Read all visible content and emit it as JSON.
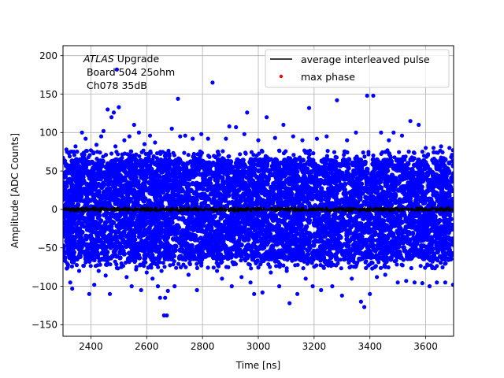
{
  "chart_data": {
    "type": "scatter",
    "title": "",
    "xlabel": "Time [ns]",
    "ylabel": "Amplitude [ADC Counts]",
    "xlim": [
      2300,
      3700
    ],
    "ylim": [
      -165,
      213
    ],
    "xticks": [
      2400,
      2600,
      2800,
      3000,
      3200,
      3400,
      3600
    ],
    "yticks": [
      -150,
      -100,
      -50,
      0,
      50,
      100,
      150,
      200
    ],
    "grid": true,
    "legend_position": "top-right",
    "annotation": {
      "italic": "ATLAS",
      "line1_rest": " Upgrade",
      "line2": " Board 504 25ohm",
      "line3": " Ch078 35dB"
    },
    "series": [
      {
        "name": "average interleaved pulse",
        "style": "line",
        "color": "#000000",
        "x_range": [
          2300,
          3700
        ],
        "y_mean": 0,
        "jitter": 2
      },
      {
        "name": "max phase",
        "style": "markers",
        "color": "#ff0000",
        "points": []
      },
      {
        "name": "",
        "style": "markers",
        "color": "#0000ff",
        "band": {
          "x_range": [
            2300,
            3700
          ],
          "y_range": [
            -65,
            65
          ]
        },
        "outliers": [
          [
            2312,
            78
          ],
          [
            2318,
            -72
          ],
          [
            2326,
            -95
          ],
          [
            2333,
            -103
          ],
          [
            2345,
            82
          ],
          [
            2358,
            -80
          ],
          [
            2368,
            100
          ],
          [
            2381,
            92
          ],
          [
            2394,
            -110
          ],
          [
            2400,
            77
          ],
          [
            2412,
            -98
          ],
          [
            2420,
            84
          ],
          [
            2428,
            -80
          ],
          [
            2437,
            95
          ],
          [
            2445,
            102
          ],
          [
            2453,
            -86
          ],
          [
            2460,
            130
          ],
          [
            2468,
            -110
          ],
          [
            2474,
            120
          ],
          [
            2482,
            126
          ],
          [
            2488,
            82
          ],
          [
            2493,
            182
          ],
          [
            2500,
            133
          ],
          [
            2509,
            -75
          ],
          [
            2520,
            90
          ],
          [
            2528,
            -88
          ],
          [
            2538,
            95
          ],
          [
            2546,
            -100
          ],
          [
            2555,
            110
          ],
          [
            2562,
            -78
          ],
          [
            2572,
            100
          ],
          [
            2580,
            -105
          ],
          [
            2592,
            85
          ],
          [
            2600,
            -82
          ],
          [
            2612,
            96
          ],
          [
            2621,
            -90
          ],
          [
            2630,
            87
          ],
          [
            2640,
            -100
          ],
          [
            2648,
            -115
          ],
          [
            2653,
            -80
          ],
          [
            2662,
            -138
          ],
          [
            2666,
            -115
          ],
          [
            2672,
            -138
          ],
          [
            2676,
            -106
          ],
          [
            2690,
            105
          ],
          [
            2700,
            -100
          ],
          [
            2712,
            144
          ],
          [
            2720,
            95
          ],
          [
            2738,
            96
          ],
          [
            2750,
            -85
          ],
          [
            2765,
            92
          ],
          [
            2780,
            -105
          ],
          [
            2796,
            98
          ],
          [
            2820,
            92
          ],
          [
            2836,
            165
          ],
          [
            2852,
            -80
          ],
          [
            2870,
            -90
          ],
          [
            2884,
            92
          ],
          [
            2896,
            108
          ],
          [
            2905,
            -100
          ],
          [
            2920,
            107
          ],
          [
            2940,
            -88
          ],
          [
            2950,
            98
          ],
          [
            2960,
            126
          ],
          [
            2972,
            -95
          ],
          [
            2985,
            -110
          ],
          [
            3000,
            90
          ],
          [
            3015,
            -108
          ],
          [
            3030,
            120
          ],
          [
            3045,
            -82
          ],
          [
            3060,
            93
          ],
          [
            3075,
            -100
          ],
          [
            3090,
            110
          ],
          [
            3102,
            -80
          ],
          [
            3112,
            -122
          ],
          [
            3125,
            95
          ],
          [
            3140,
            -110
          ],
          [
            3158,
            90
          ],
          [
            3170,
            -90
          ],
          [
            3182,
            132
          ],
          [
            3195,
            -100
          ],
          [
            3210,
            92
          ],
          [
            3225,
            -105
          ],
          [
            3245,
            95
          ],
          [
            3265,
            -100
          ],
          [
            3282,
            142
          ],
          [
            3300,
            -112
          ],
          [
            3318,
            90
          ],
          [
            3335,
            -90
          ],
          [
            3350,
            100
          ],
          [
            3368,
            -120
          ],
          [
            3380,
            -127
          ],
          [
            3390,
            148
          ],
          [
            3400,
            -110
          ],
          [
            3412,
            148
          ],
          [
            3425,
            -88
          ],
          [
            3440,
            100
          ],
          [
            3455,
            -85
          ],
          [
            3468,
            90
          ],
          [
            3485,
            100
          ],
          [
            3500,
            -95
          ],
          [
            3515,
            96
          ],
          [
            3530,
            -93
          ],
          [
            3545,
            115
          ],
          [
            3560,
            -95
          ],
          [
            3575,
            110
          ],
          [
            3588,
            -96
          ],
          [
            3600,
            80
          ],
          [
            3614,
            -100
          ],
          [
            3628,
            80
          ],
          [
            3640,
            -95
          ],
          [
            3655,
            82
          ],
          [
            3670,
            -95
          ],
          [
            3685,
            80
          ],
          [
            3698,
            -98
          ]
        ]
      }
    ]
  }
}
